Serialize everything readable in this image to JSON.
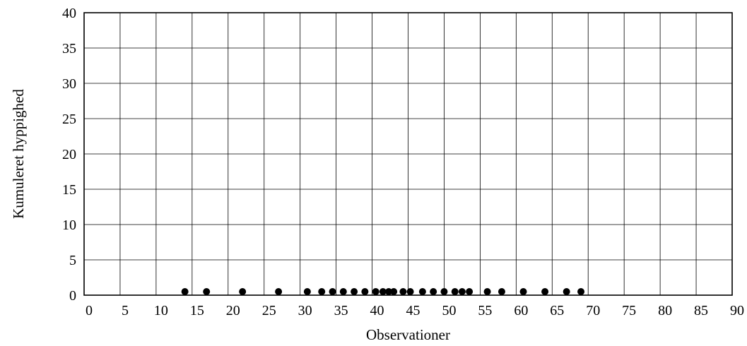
{
  "chart_data": {
    "type": "scatter",
    "xlabel": "Observationer",
    "ylabel": "Kumuleret hyppighed",
    "xlim": [
      0,
      90
    ],
    "ylim": [
      0,
      40
    ],
    "x_ticks": [
      0,
      5,
      10,
      15,
      20,
      25,
      30,
      35,
      40,
      45,
      50,
      55,
      60,
      65,
      70,
      75,
      80,
      85,
      90
    ],
    "y_ticks": [
      0,
      5,
      10,
      15,
      20,
      25,
      30,
      35,
      40
    ],
    "grid": true,
    "series": [
      {
        "color": "#000000",
        "points": [
          {
            "x": 14,
            "y": 0.5
          },
          {
            "x": 17,
            "y": 0.5
          },
          {
            "x": 22,
            "y": 0.5
          },
          {
            "x": 27,
            "y": 0.5
          },
          {
            "x": 31,
            "y": 0.5
          },
          {
            "x": 33,
            "y": 0.5
          },
          {
            "x": 34.5,
            "y": 0.5
          },
          {
            "x": 36,
            "y": 0.5
          },
          {
            "x": 37.5,
            "y": 0.5
          },
          {
            "x": 39,
            "y": 0.5
          },
          {
            "x": 40.5,
            "y": 0.5
          },
          {
            "x": 41.5,
            "y": 0.5
          },
          {
            "x": 42.3,
            "y": 0.5
          },
          {
            "x": 43,
            "y": 0.5
          },
          {
            "x": 44.3,
            "y": 0.5
          },
          {
            "x": 45.3,
            "y": 0.5
          },
          {
            "x": 47,
            "y": 0.5
          },
          {
            "x": 48.5,
            "y": 0.5
          },
          {
            "x": 50,
            "y": 0.5
          },
          {
            "x": 51.5,
            "y": 0.5
          },
          {
            "x": 52.5,
            "y": 0.5
          },
          {
            "x": 53.5,
            "y": 0.5
          },
          {
            "x": 56,
            "y": 0.5
          },
          {
            "x": 58,
            "y": 0.5
          },
          {
            "x": 61,
            "y": 0.5
          },
          {
            "x": 64,
            "y": 0.5
          },
          {
            "x": 67,
            "y": 0.5
          },
          {
            "x": 69,
            "y": 0.5
          }
        ]
      }
    ]
  }
}
